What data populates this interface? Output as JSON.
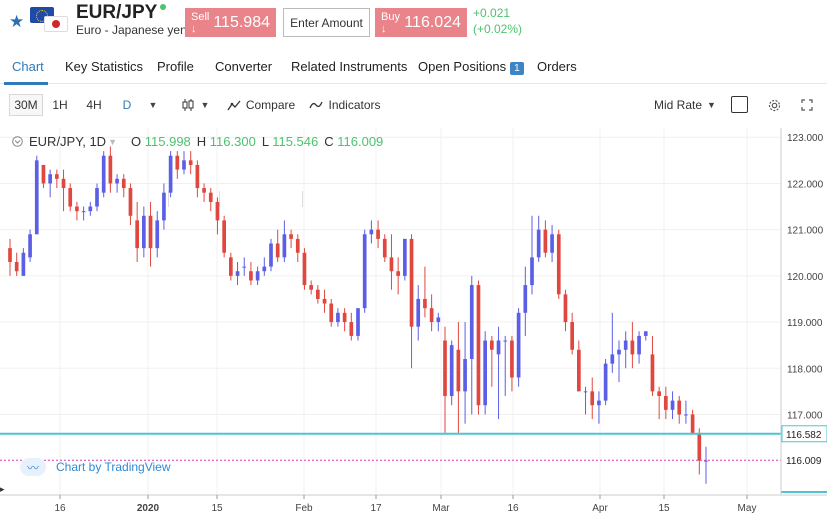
{
  "header": {
    "symbol": "EUR/JPY",
    "description": "Euro - Japanese yen",
    "sell_label": "Sell ↓",
    "sell_price": "115.984",
    "amount_placeholder": "Enter Amount",
    "buy_label": "Buy ↓",
    "buy_price": "116.024",
    "change_abs": "+0.021",
    "change_pct": "(+0.02%)"
  },
  "tabs": [
    {
      "label": "Chart",
      "active": true
    },
    {
      "label": "Key Statistics"
    },
    {
      "label": "Profile"
    },
    {
      "label": "Converter"
    },
    {
      "label": "Related Instruments"
    },
    {
      "label": "Open Positions",
      "badge": "1"
    },
    {
      "label": "Orders"
    }
  ],
  "toolbar": {
    "intervals": [
      "30M",
      "1H",
      "4H",
      "D"
    ],
    "selected_interval": "D",
    "compare": "Compare",
    "indicators": "Indicators",
    "price_type": "Mid Rate"
  },
  "legend": {
    "symbol": "EUR/JPY, 1D",
    "o_key": "O",
    "o_val": "115.998",
    "h_key": "H",
    "h_val": "116.300",
    "l_key": "L",
    "l_val": "115.546",
    "c_key": "C",
    "c_val": "116.009"
  },
  "watermark": "Chart by TradingView",
  "colors": {
    "up": "#5b5fe6",
    "down": "#e0473e",
    "level_line": "#4fc3cf",
    "last_price": "#d63fb5",
    "accent": "#2f7ab8"
  },
  "chart_data": {
    "type": "candlestick",
    "y_ticks": [
      "123.000",
      "122.000",
      "121.000",
      "120.000",
      "119.000",
      "118.000",
      "117.000"
    ],
    "ylim": [
      115.3,
      123.2
    ],
    "x_ticks": [
      "16",
      "2020",
      "15",
      "Feb",
      "17",
      "Mar",
      "16",
      "Apr",
      "15",
      "May"
    ],
    "level_line_label": "116.582",
    "last_price_label": "116.009",
    "level_line": 116.582,
    "last_price": 116.009,
    "candles": [
      [
        120.6,
        120.8,
        120.0,
        120.3
      ],
      [
        120.3,
        120.5,
        120.0,
        120.1
      ],
      [
        120.0,
        120.6,
        120.0,
        120.5
      ],
      [
        120.4,
        121.0,
        120.3,
        120.9
      ],
      [
        120.9,
        122.6,
        120.9,
        122.5
      ],
      [
        122.4,
        122.4,
        121.9,
        122.0
      ],
      [
        122.0,
        122.3,
        121.7,
        122.2
      ],
      [
        122.2,
        122.3,
        121.9,
        122.1
      ],
      [
        122.1,
        122.3,
        121.4,
        121.9
      ],
      [
        121.9,
        122.0,
        121.4,
        121.5
      ],
      [
        121.5,
        121.6,
        121.2,
        121.4
      ],
      [
        121.4,
        121.5,
        121.2,
        121.4
      ],
      [
        121.4,
        121.6,
        121.3,
        121.5
      ],
      [
        121.5,
        122.0,
        121.4,
        121.9
      ],
      [
        121.8,
        122.7,
        121.7,
        122.6
      ],
      [
        122.6,
        122.8,
        121.8,
        122.0
      ],
      [
        122.0,
        122.2,
        121.8,
        122.1
      ],
      [
        122.1,
        122.2,
        121.7,
        121.9
      ],
      [
        121.9,
        122.0,
        121.1,
        121.3
      ],
      [
        121.2,
        121.6,
        120.3,
        120.6
      ],
      [
        120.6,
        121.5,
        120.4,
        121.3
      ],
      [
        121.3,
        121.6,
        120.2,
        120.6
      ],
      [
        120.6,
        121.4,
        120.4,
        121.2
      ],
      [
        121.2,
        122.0,
        121.0,
        121.8
      ],
      [
        121.8,
        122.7,
        121.7,
        122.6
      ],
      [
        122.6,
        122.7,
        122.1,
        122.3
      ],
      [
        122.3,
        122.7,
        122.2,
        122.5
      ],
      [
        122.5,
        122.7,
        122.2,
        122.4
      ],
      [
        122.4,
        122.5,
        121.7,
        121.9
      ],
      [
        121.9,
        122.0,
        121.6,
        121.8
      ],
      [
        121.8,
        121.9,
        121.4,
        121.6
      ],
      [
        121.6,
        121.7,
        120.9,
        121.2
      ],
      [
        121.2,
        121.3,
        120.4,
        120.5
      ],
      [
        120.4,
        120.5,
        119.9,
        120.0
      ],
      [
        120.0,
        120.3,
        119.8,
        120.1
      ],
      [
        120.2,
        120.4,
        120.0,
        120.2
      ],
      [
        120.1,
        120.3,
        119.8,
        119.9
      ],
      [
        119.9,
        120.2,
        119.8,
        120.1
      ],
      [
        120.1,
        120.4,
        120.0,
        120.2
      ],
      [
        120.2,
        120.8,
        120.1,
        120.7
      ],
      [
        120.7,
        121.0,
        120.3,
        120.4
      ],
      [
        120.4,
        121.2,
        120.3,
        120.9
      ],
      [
        120.9,
        121.0,
        120.6,
        120.8
      ],
      [
        120.8,
        120.9,
        120.3,
        120.5
      ],
      [
        120.5,
        120.6,
        119.7,
        119.8
      ],
      [
        119.8,
        119.9,
        119.6,
        119.7
      ],
      [
        119.7,
        119.8,
        119.4,
        119.5
      ],
      [
        119.5,
        119.7,
        119.2,
        119.4
      ],
      [
        119.4,
        119.5,
        118.9,
        119.0
      ],
      [
        119.0,
        119.3,
        118.9,
        119.2
      ],
      [
        119.2,
        119.3,
        118.8,
        119.0
      ],
      [
        119.0,
        119.2,
        118.6,
        118.7
      ],
      [
        118.7,
        119.3,
        118.6,
        119.3
      ],
      [
        119.3,
        121.0,
        119.2,
        120.9
      ],
      [
        120.9,
        121.2,
        120.7,
        121.0
      ],
      [
        121.0,
        121.2,
        120.6,
        120.8
      ],
      [
        120.8,
        120.9,
        120.3,
        120.4
      ],
      [
        120.4,
        120.9,
        119.7,
        120.1
      ],
      [
        120.1,
        120.4,
        119.6,
        120.0
      ],
      [
        120.0,
        120.8,
        119.9,
        120.8
      ],
      [
        120.8,
        120.9,
        118.0,
        118.9
      ],
      [
        118.9,
        119.8,
        118.6,
        119.5
      ],
      [
        119.5,
        120.2,
        119.1,
        119.3
      ],
      [
        119.3,
        119.6,
        118.8,
        119.0
      ],
      [
        119.0,
        119.2,
        118.8,
        119.1
      ],
      [
        118.6,
        118.9,
        116.6,
        117.4
      ],
      [
        117.4,
        118.6,
        117.2,
        118.5
      ],
      [
        118.4,
        119.0,
        116.6,
        117.5
      ],
      [
        117.5,
        119.0,
        116.8,
        118.2
      ],
      [
        118.2,
        120.0,
        117.0,
        119.8
      ],
      [
        119.8,
        119.9,
        117.0,
        117.2
      ],
      [
        117.2,
        118.8,
        117.0,
        118.6
      ],
      [
        118.6,
        118.7,
        117.6,
        118.4
      ],
      [
        118.3,
        118.9,
        116.9,
        118.6
      ],
      [
        118.6,
        118.7,
        117.4,
        118.6
      ],
      [
        118.6,
        118.7,
        117.5,
        117.8
      ],
      [
        117.8,
        119.3,
        117.6,
        119.2
      ],
      [
        119.2,
        120.2,
        118.7,
        119.8
      ],
      [
        119.8,
        121.3,
        119.6,
        120.4
      ],
      [
        120.4,
        121.3,
        120.3,
        121.0
      ],
      [
        121.0,
        121.2,
        120.4,
        120.5
      ],
      [
        120.5,
        121.1,
        120.3,
        120.9
      ],
      [
        120.9,
        121.0,
        119.5,
        119.6
      ],
      [
        119.6,
        119.7,
        118.8,
        119.0
      ],
      [
        119.0,
        119.2,
        118.3,
        118.4
      ],
      [
        118.4,
        118.6,
        117.5,
        117.5
      ],
      [
        117.5,
        117.6,
        117.0,
        117.5
      ],
      [
        117.5,
        117.8,
        116.9,
        117.2
      ],
      [
        117.2,
        117.5,
        116.8,
        117.3
      ],
      [
        117.3,
        118.2,
        117.2,
        118.1
      ],
      [
        118.1,
        119.2,
        117.9,
        118.3
      ],
      [
        118.3,
        118.6,
        117.7,
        118.4
      ],
      [
        118.4,
        118.8,
        118.0,
        118.6
      ],
      [
        118.6,
        119.0,
        118.0,
        118.3
      ],
      [
        118.3,
        118.8,
        118.1,
        118.7
      ],
      [
        118.7,
        118.8,
        118.6,
        118.8
      ],
      [
        118.3,
        118.7,
        117.4,
        117.5
      ],
      [
        117.5,
        117.6,
        116.9,
        117.4
      ],
      [
        117.4,
        117.6,
        116.9,
        117.1
      ],
      [
        117.1,
        117.5,
        116.9,
        117.3
      ],
      [
        117.3,
        117.4,
        116.8,
        117.0
      ],
      [
        117.0,
        117.3,
        116.8,
        117.0
      ],
      [
        117.0,
        117.1,
        116.6,
        116.6
      ],
      [
        116.6,
        116.7,
        115.7,
        116.0
      ],
      [
        116.0,
        116.3,
        115.5,
        116.0
      ]
    ]
  }
}
